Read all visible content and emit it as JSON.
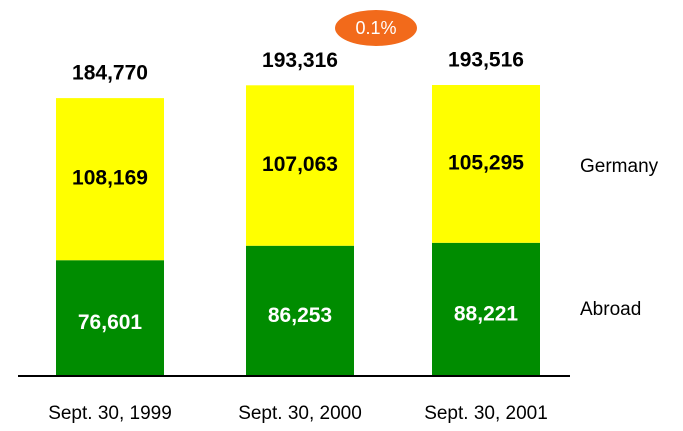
{
  "chart_data": {
    "type": "stacked_bar",
    "categories": [
      "Sept. 30, 1999",
      "Sept. 30, 2000",
      "Sept. 30, 2001"
    ],
    "series": [
      {
        "name": "Abroad",
        "color": "#008c00",
        "values": [
          76601,
          86253,
          88221
        ],
        "value_labels": [
          "76,601",
          "86,253",
          "88,221"
        ]
      },
      {
        "name": "Germany",
        "color": "#ffff00",
        "values": [
          108169,
          107063,
          105295
        ],
        "value_labels": [
          "108,169",
          "107,063",
          "105,295"
        ]
      }
    ],
    "totals": {
      "values": [
        184770,
        193316,
        193516
      ],
      "value_labels": [
        "184,770",
        "193,316",
        "193,516"
      ]
    },
    "annotation": "0.1%"
  }
}
